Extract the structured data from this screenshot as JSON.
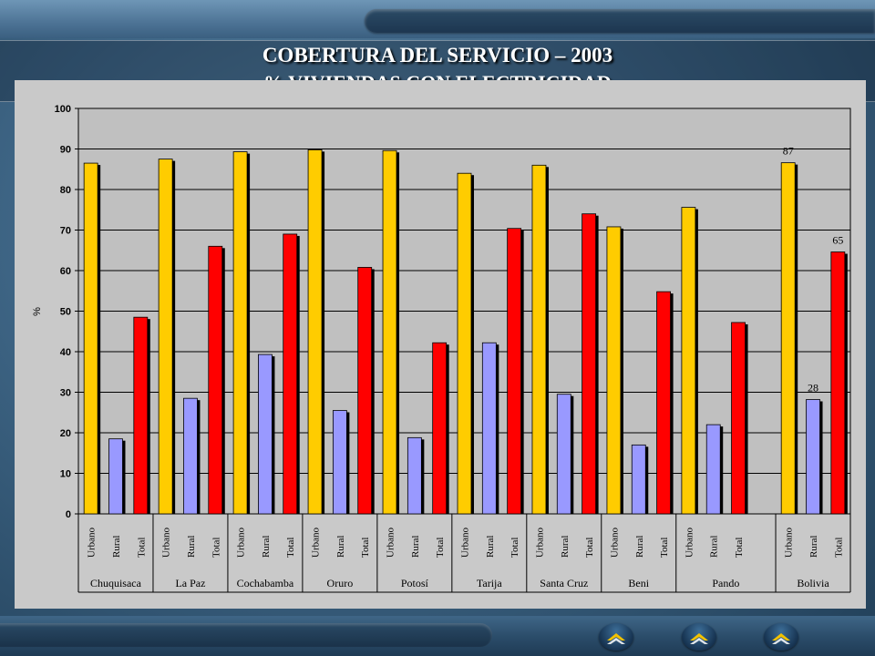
{
  "slide": {
    "title": "COBERTURA DEL SERVICIO – 2003",
    "subtitle": "% VIVIENDAS CON ELECTRICIDAD"
  },
  "colors": {
    "urbano": "#FFCC00",
    "rural": "#9999FF",
    "total": "#FF0000",
    "plot_bg": "#C0C0C0"
  },
  "nav_icons": [
    "nav-icon",
    "nav-icon",
    "nav-icon"
  ],
  "chart_data": {
    "type": "bar",
    "ylabel": "%",
    "ylim": [
      0,
      100
    ],
    "yticks": [
      0,
      10,
      20,
      30,
      40,
      50,
      60,
      70,
      80,
      90,
      100
    ],
    "grid": true,
    "legend": "none",
    "groups": [
      {
        "name": "Chuquisaca",
        "values": [
          {
            "label": "Urbano",
            "value": 86.5
          },
          {
            "label": "Rural",
            "value": 18.5
          },
          {
            "label": "Total",
            "value": 48.5
          }
        ]
      },
      {
        "name": "La Paz",
        "values": [
          {
            "label": "Urbano",
            "value": 87.5
          },
          {
            "label": "Rural",
            "value": 28.5
          },
          {
            "label": "Total",
            "value": 66
          }
        ]
      },
      {
        "name": "Cochabamba",
        "values": [
          {
            "label": "Urbano",
            "value": 89.3
          },
          {
            "label": "Rural",
            "value": 39.3
          },
          {
            "label": "Total",
            "value": 69
          }
        ]
      },
      {
        "name": "Oruro",
        "values": [
          {
            "label": "Urbano",
            "value": 89.8
          },
          {
            "label": "Rural",
            "value": 25.5
          },
          {
            "label": "Total",
            "value": 60.8
          }
        ]
      },
      {
        "name": "Potosí",
        "values": [
          {
            "label": "Urbano",
            "value": 89.6
          },
          {
            "label": "Rural",
            "value": 18.8
          },
          {
            "label": "Total",
            "value": 42.2
          }
        ]
      },
      {
        "name": "Tarija",
        "values": [
          {
            "label": "Urbano",
            "value": 84
          },
          {
            "label": "Rural",
            "value": 42.2
          },
          {
            "label": "Total",
            "value": 70.4
          }
        ]
      },
      {
        "name": "Santa Cruz",
        "values": [
          {
            "label": "Urbano",
            "value": 86
          },
          {
            "label": "Rural",
            "value": 29.5
          },
          {
            "label": "Total",
            "value": 74
          }
        ]
      },
      {
        "name": "Beni",
        "values": [
          {
            "label": "Urbano",
            "value": 70.8
          },
          {
            "label": "Rural",
            "value": 17
          },
          {
            "label": "Total",
            "value": 54.8
          }
        ]
      },
      {
        "name": "Pando",
        "values": [
          {
            "label": "Urbano",
            "value": 75.6
          },
          {
            "label": "Rural",
            "value": 22
          },
          {
            "label": "Total",
            "value": 47.2
          }
        ]
      },
      {
        "name": "Bolivia",
        "values": [
          {
            "label": "Urbano",
            "value": 86.6,
            "data_label": "87"
          },
          {
            "label": "Rural",
            "value": 28.2,
            "data_label": "28"
          },
          {
            "label": "Total",
            "value": 64.6,
            "data_label": "65"
          }
        ]
      }
    ]
  }
}
